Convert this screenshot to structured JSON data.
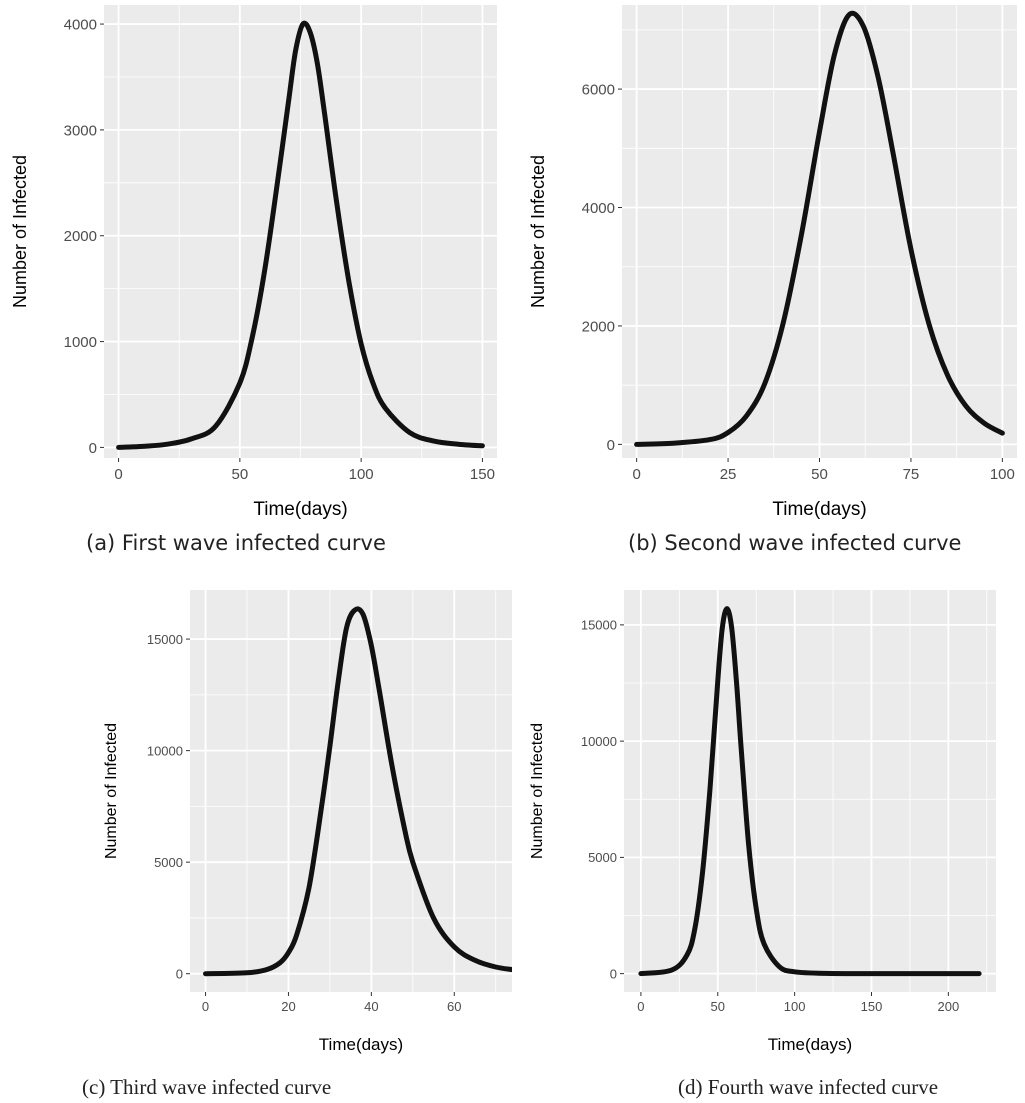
{
  "figure": {
    "captions": [
      "(a)  First wave infected curve",
      "(b) Second wave infected curve",
      "(c) Third wave infected curve",
      "(d) Fourth wave infected curve"
    ]
  },
  "colors": {
    "panel_bg": "#ebebeb",
    "grid": "#ffffff",
    "curve": "#111111"
  },
  "chart_data": [
    {
      "type": "line",
      "xlabel": "Time(days)",
      "ylabel": "Number of Infected",
      "xlim": [
        -6,
        156
      ],
      "ylim": [
        -100,
        4180
      ],
      "xticks": [
        0,
        50,
        100,
        150
      ],
      "yticks": [
        0,
        1000,
        2000,
        3000,
        4000
      ],
      "grid": true,
      "series": [
        {
          "x": [
            0,
            10,
            20,
            30,
            40,
            50,
            55,
            60,
            65,
            70,
            73,
            76,
            79,
            82,
            85,
            90,
            95,
            100,
            105,
            110,
            120,
            130,
            140,
            150
          ],
          "y": [
            0,
            10,
            30,
            80,
            200,
            610,
            1030,
            1640,
            2420,
            3260,
            3750,
            4000,
            3920,
            3620,
            3140,
            2300,
            1560,
            980,
            600,
            370,
            140,
            60,
            30,
            15
          ]
        }
      ]
    },
    {
      "type": "line",
      "xlabel": "Time(days)",
      "ylabel": "Number of Infected",
      "xlim": [
        -4,
        104
      ],
      "ylim": [
        -230,
        7420
      ],
      "xticks": [
        0,
        25,
        50,
        75,
        100
      ],
      "yticks": [
        0,
        2000,
        4000,
        6000
      ],
      "grid": true,
      "series": [
        {
          "x": [
            0,
            10,
            20,
            25,
            30,
            35,
            40,
            45,
            50,
            54,
            58,
            62,
            66,
            70,
            75,
            80,
            85,
            90,
            95,
            100
          ],
          "y": [
            0,
            20,
            80,
            200,
            480,
            1020,
            2030,
            3520,
            5280,
            6560,
            7250,
            7060,
            6210,
            4960,
            3300,
            2020,
            1170,
            650,
            360,
            190
          ]
        }
      ]
    },
    {
      "type": "line",
      "xlabel": "Time(days)",
      "ylabel": "Number of Infected",
      "xlim": [
        -3.75,
        78.75
      ],
      "ylim": [
        -820,
        17200
      ],
      "xticks": [
        0,
        20,
        40,
        60
      ],
      "yticks": [
        0,
        5000,
        10000,
        15000
      ],
      "grid": true,
      "series": [
        {
          "x": [
            0,
            10,
            15,
            18,
            20,
            22,
            25,
            28,
            30,
            32,
            34,
            36,
            38,
            40,
            42,
            45,
            48,
            50,
            55,
            60,
            65,
            70,
            75
          ],
          "y": [
            0,
            40,
            200,
            500,
            950,
            1750,
            3900,
            7500,
            10200,
            13100,
            15500,
            16300,
            16100,
            14700,
            12600,
            9300,
            6500,
            5000,
            2500,
            1200,
            600,
            300,
            160
          ]
        }
      ]
    },
    {
      "type": "line",
      "xlabel": "Time(days)",
      "ylabel": "Number of Infected",
      "xlim": [
        -11,
        231
      ],
      "ylim": [
        -790,
        16500
      ],
      "xticks": [
        0,
        50,
        100,
        150,
        200
      ],
      "yticks": [
        0,
        5000,
        10000,
        15000
      ],
      "grid": true,
      "series": [
        {
          "x": [
            0,
            20,
            30,
            35,
            40,
            45,
            50,
            53,
            56,
            59,
            62,
            65,
            70,
            75,
            80,
            90,
            100,
            120,
            150,
            200,
            220
          ],
          "y": [
            0,
            150,
            800,
            1900,
            4300,
            8000,
            12600,
            14900,
            15700,
            14900,
            12700,
            9900,
            5600,
            2800,
            1300,
            300,
            80,
            10,
            0,
            0,
            0
          ]
        }
      ]
    }
  ]
}
